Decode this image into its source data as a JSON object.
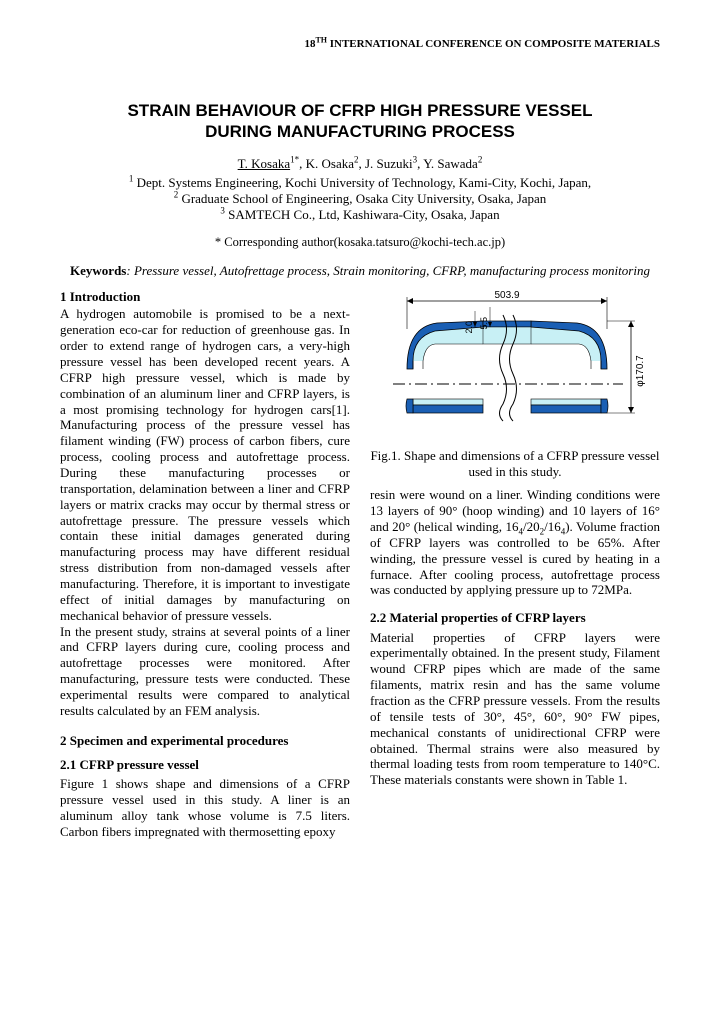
{
  "header": {
    "conference": "18<sup>TH</sup> INTERNATIONAL CONFERENCE ON COMPOSITE MATERIALS"
  },
  "title_line1": "STRAIN BEHAVIOUR OF CFRP HIGH PRESSURE VESSEL",
  "title_line2": "DURING MANUFACTURING PROCESS",
  "authors_html": "<span class=\"underline\">T. Kosaka</span><sup>1*</sup>, K. Osaka<sup>2</sup>, J. Suzuki<sup>3</sup>, Y. Sawada<sup>2</sup>",
  "affil1": "<sup>1</sup> Dept. Systems Engineering, Kochi University of Technology, Kami-City, Kochi, Japan,",
  "affil2": "<sup>2</sup> Graduate School of Engineering, Osaka City University, Osaka, Japan",
  "affil3": "<sup>3</sup> SAMTECH Co., Ltd, Kashiwara-City, Osaka, Japan",
  "corresponding": "* Corresponding author(kosaka.tatsuro@kochi-tech.ac.jp)",
  "keywords_label": "Keywords",
  "keywords_list": ": Pressure vessel, Autofrettage process, Strain monitoring, CFRP, manufacturing process monitoring",
  "section1_head": "1 Introduction",
  "intro_p1": "A hydrogen automobile is promised to be a next-generation eco-car for reduction of greenhouse gas. In order to extend range of hydrogen cars, a very-high pressure vessel has been developed recent years. A CFRP high pressure vessel, which is made by combination of an aluminum liner and CFRP layers, is a most promising technology for hydrogen cars[1]. Manufacturing process of the pressure vessel has filament winding (FW) process of carbon fibers, cure process, cooling process and autofrettage process. During these manufacturing processes or transportation, delamination between a liner and CFRP layers or matrix cracks may occur by thermal stress or autofrettage pressure. The pressure vessels which contain these initial damages generated during manufacturing process may have different residual stress distribution from non-damaged vessels after manufacturing. Therefore, it is important to investigate effect of initial damages by manufacturing on mechanical behavior of pressure vessels.",
  "intro_p2": "In the present study, strains at several points of a liner and CFRP layers during cure, cooling process and autofrettage processes were monitored. After manufacturing, pressure tests were conducted. These experimental results were compared to analytical results calculated by an FEM analysis.",
  "section2_head": "2 Specimen and experimental procedures",
  "section21_head": "2.1 CFRP pressure vessel",
  "spec_p1": "Figure 1 shows shape and dimensions of a CFRP pressure vessel used in this study. A liner is an aluminum alloy tank whose volume is 7.5 liters. Carbon fibers impregnated with thermosetting epoxy",
  "fig_caption": "Fig.1. Shape and dimensions of a CFRP pressure vessel used in this study.",
  "right_p1_html": "resin were wound on a liner. Winding conditions were 13 layers of 90° (hoop winding) and 10 layers of 16° and 20° (helical winding, 16<sub>4</sub>/20<sub>2</sub>/16<sub>4</sub>). Volume fraction of CFRP layers was controlled to be 65%. After winding, the pressure vessel is cured by heating in a furnace. After cooling process, autofrettage process was conducted by applying pressure up to 72MPa.",
  "section22_head": "2.2 Material properties of CFRP layers",
  "right_p2": "Material properties of CFRP layers were experimentally obtained. In the present study, Filament wound CFRP pipes which are made of the same filaments, matrix resin and has the same volume fraction as the CFRP pressure vessels. From the results of tensile tests of 30°, 45°, 60°, 90° FW pipes, mechanical constants of unidirectional CFRP were obtained. Thermal strains were also measured by thermal loading tests from room temperature to 140°C. These materials constants were shown in Table 1.",
  "figure": {
    "width_label": "503.9",
    "inner_label1": "2.0",
    "inner_label2": "5.5",
    "height_label": "φ170.7",
    "colors": {
      "liner_fill": "#c8f0f5",
      "cfrp_fill": "#1a5fb4",
      "stroke": "#000000"
    }
  }
}
